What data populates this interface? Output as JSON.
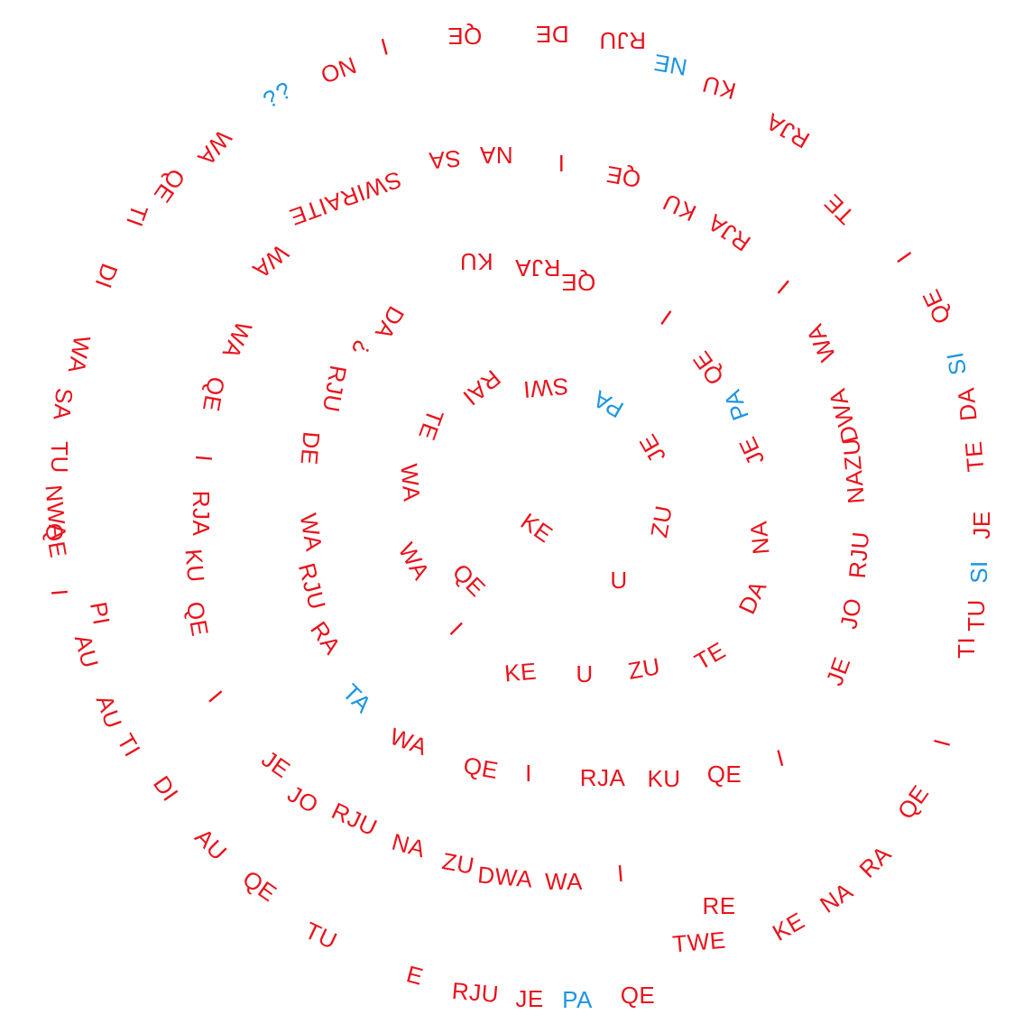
{
  "colors": {
    "primary": "#e8141d",
    "accent": "#1e95e3",
    "background": "#ffffff"
  },
  "tokens": [
    {
      "text": "KE",
      "color": "red"
    },
    {
      "text": "ZU",
      "color": "red"
    },
    {
      "text": "U",
      "color": "red"
    },
    {
      "text": "QE",
      "color": "red"
    },
    {
      "text": "WA",
      "color": "red"
    },
    {
      "text": "WA",
      "color": "red"
    },
    {
      "text": "TE",
      "color": "red"
    },
    {
      "text": "RAI",
      "color": "red"
    },
    {
      "text": "SWI",
      "color": "red"
    },
    {
      "text": "PA",
      "color": "blue"
    },
    {
      "text": "JE",
      "color": "red"
    },
    {
      "text": "I",
      "color": "red"
    },
    {
      "text": "KE",
      "color": "red"
    },
    {
      "text": "U",
      "color": "red"
    },
    {
      "text": "ZU",
      "color": "red"
    },
    {
      "text": "TE",
      "color": "red"
    },
    {
      "text": "DA",
      "color": "red"
    },
    {
      "text": "NA",
      "color": "red"
    },
    {
      "text": "JE",
      "color": "red"
    },
    {
      "text": "PA",
      "color": "blue"
    },
    {
      "text": "QE",
      "color": "red"
    },
    {
      "text": "I",
      "color": "red"
    },
    {
      "text": "QE",
      "color": "red"
    },
    {
      "text": "RJA",
      "color": "red"
    },
    {
      "text": "KU",
      "color": "red"
    },
    {
      "text": "DA",
      "color": "red"
    },
    {
      "text": "¿",
      "color": "red"
    },
    {
      "text": "RJU",
      "color": "red"
    },
    {
      "text": "DE",
      "color": "red"
    },
    {
      "text": "WA",
      "color": "red"
    },
    {
      "text": "RJU",
      "color": "red"
    },
    {
      "text": "RA",
      "color": "red"
    },
    {
      "text": "TA",
      "color": "blue"
    },
    {
      "text": "WA",
      "color": "red"
    },
    {
      "text": "QE",
      "color": "red"
    },
    {
      "text": "I",
      "color": "red"
    },
    {
      "text": "RJA",
      "color": "red"
    },
    {
      "text": "KU",
      "color": "red"
    },
    {
      "text": "QE",
      "color": "red"
    },
    {
      "text": "I",
      "color": "red"
    },
    {
      "text": "JE",
      "color": "red"
    },
    {
      "text": "JO",
      "color": "red"
    },
    {
      "text": "RJU",
      "color": "red"
    },
    {
      "text": "NAZU",
      "color": "red"
    },
    {
      "text": "DWA",
      "color": "red"
    },
    {
      "text": "WA",
      "color": "red"
    },
    {
      "text": "I",
      "color": "red"
    },
    {
      "text": "RJA",
      "color": "red"
    },
    {
      "text": "KU",
      "color": "red"
    },
    {
      "text": "QE",
      "color": "red"
    },
    {
      "text": "I",
      "color": "red"
    },
    {
      "text": "NA",
      "color": "red"
    },
    {
      "text": "SA",
      "color": "red"
    },
    {
      "text": "SWIRAITE",
      "color": "red"
    },
    {
      "text": "WA",
      "color": "red"
    },
    {
      "text": "WA",
      "color": "red"
    },
    {
      "text": "QE",
      "color": "red"
    },
    {
      "text": "I",
      "color": "red"
    },
    {
      "text": "RJA",
      "color": "red"
    },
    {
      "text": "KU",
      "color": "red"
    },
    {
      "text": "QE",
      "color": "red"
    },
    {
      "text": "I",
      "color": "red"
    },
    {
      "text": "JE",
      "color": "red"
    },
    {
      "text": "JO",
      "color": "red"
    },
    {
      "text": "RJU",
      "color": "red"
    },
    {
      "text": "NA",
      "color": "red"
    },
    {
      "text": "ZU",
      "color": "red"
    },
    {
      "text": "DWA",
      "color": "red"
    },
    {
      "text": "WA",
      "color": "red"
    },
    {
      "text": "I",
      "color": "red"
    },
    {
      "text": "RE",
      "color": "red"
    },
    {
      "text": "TWE",
      "color": "red"
    },
    {
      "text": "KE",
      "color": "red"
    },
    {
      "text": "NA",
      "color": "red"
    },
    {
      "text": "RA",
      "color": "red"
    },
    {
      "text": "QE",
      "color": "red"
    },
    {
      "text": "I",
      "color": "red"
    },
    {
      "text": "TI",
      "color": "red"
    },
    {
      "text": "TU",
      "color": "red"
    },
    {
      "text": "SI",
      "color": "blue"
    },
    {
      "text": "JE",
      "color": "red"
    },
    {
      "text": "TE",
      "color": "red"
    },
    {
      "text": "DA",
      "color": "red"
    },
    {
      "text": "SI",
      "color": "blue"
    },
    {
      "text": "QE",
      "color": "red"
    },
    {
      "text": "I",
      "color": "red"
    },
    {
      "text": "TE",
      "color": "red"
    },
    {
      "text": "RJA",
      "color": "red"
    },
    {
      "text": "KU",
      "color": "red"
    },
    {
      "text": "NE",
      "color": "blue"
    },
    {
      "text": "RJU",
      "color": "red"
    },
    {
      "text": "DE",
      "color": "red"
    },
    {
      "text": "QE",
      "color": "red"
    },
    {
      "text": "I",
      "color": "red"
    },
    {
      "text": "NO",
      "color": "red"
    },
    {
      "text": "¿¿",
      "color": "blue"
    },
    {
      "text": "WA",
      "color": "red"
    },
    {
      "text": "QE",
      "color": "red"
    },
    {
      "text": "TI",
      "color": "red"
    },
    {
      "text": "DI",
      "color": "red"
    },
    {
      "text": "WA",
      "color": "red"
    },
    {
      "text": "SA",
      "color": "red"
    },
    {
      "text": "TU",
      "color": "red"
    },
    {
      "text": "NWA",
      "color": "red"
    },
    {
      "text": "QE",
      "color": "red"
    },
    {
      "text": "I",
      "color": "red"
    },
    {
      "text": "PI",
      "color": "red"
    },
    {
      "text": "AU",
      "color": "red"
    },
    {
      "text": "AU",
      "color": "red"
    },
    {
      "text": "TI",
      "color": "red"
    },
    {
      "text": "DI",
      "color": "red"
    },
    {
      "text": "AU",
      "color": "red"
    },
    {
      "text": "QE",
      "color": "red"
    },
    {
      "text": "TU",
      "color": "red"
    },
    {
      "text": "E",
      "color": "red"
    },
    {
      "text": "RJU",
      "color": "red"
    },
    {
      "text": "JE",
      "color": "red"
    },
    {
      "text": "PA",
      "color": "blue"
    },
    {
      "text": "QE",
      "color": "red"
    },
    {
      "text": "I",
      "color": "red"
    }
  ]
}
